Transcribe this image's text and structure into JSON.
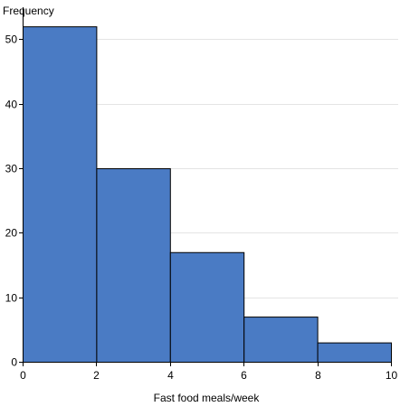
{
  "chart_data": {
    "type": "histogram",
    "ylabel": "Frequency",
    "xlabel": "Fast food meals/week",
    "xlim": [
      0,
      10
    ],
    "ylim": [
      0,
      53
    ],
    "x_ticks": [
      0,
      2,
      4,
      6,
      8,
      10
    ],
    "y_ticks": [
      0,
      10,
      20,
      30,
      40,
      50
    ],
    "bins": [
      {
        "start": 0,
        "end": 2,
        "count": 52
      },
      {
        "start": 2,
        "end": 4,
        "count": 30
      },
      {
        "start": 4,
        "end": 6,
        "count": 17
      },
      {
        "start": 6,
        "end": 8,
        "count": 7
      },
      {
        "start": 8,
        "end": 10,
        "count": 3
      }
    ],
    "bar_color": "#4a7bc4",
    "bar_edge_color": "#000000",
    "grid": "horizontal"
  }
}
